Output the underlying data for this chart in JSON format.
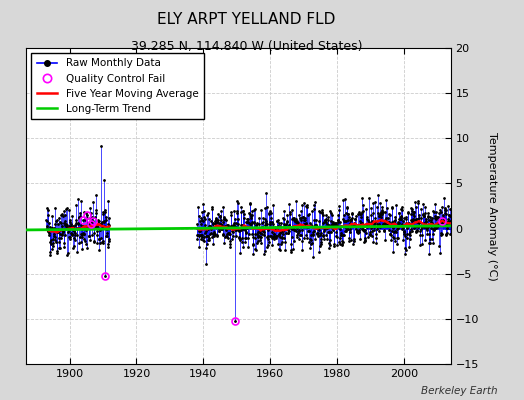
{
  "title": "ELY ARPT YELLAND FLD",
  "subtitle": "39.285 N, 114.840 W (United States)",
  "ylabel": "Temperature Anomaly (°C)",
  "watermark": "Berkeley Earth",
  "xlim": [
    1887,
    2014
  ],
  "ylim": [
    -15,
    20
  ],
  "yticks": [
    -15,
    -10,
    -5,
    0,
    5,
    10,
    15,
    20
  ],
  "xticks": [
    1900,
    1920,
    1940,
    1960,
    1980,
    2000
  ],
  "fig_bg_color": "#d8d8d8",
  "plot_bg_color": "#ffffff",
  "seg1_start": 1893,
  "seg1_end": 1912,
  "seg2_start": 1938,
  "seg2_end": 2014,
  "raw_color": "#0000ff",
  "dot_color": "#000000",
  "ma_color": "#ff0000",
  "trend_color": "#00cc00",
  "qc_color": "#ff00ff",
  "seed": 42,
  "spike1_year": 1909.5,
  "spike1_val": 9.2,
  "spike2_year": 1949.5,
  "spike2_val": -10.2,
  "qc_fail_years_seg1": [
    1904.0,
    1905.2,
    1906.3,
    1907.1,
    1910.5
  ],
  "qc_fail_vals_seg1": [
    1.0,
    1.5,
    0.5,
    0.8,
    -5.2
  ],
  "qc_fail_years_seg2": [
    1949.5,
    2011.5
  ],
  "qc_fail_vals_seg2": [
    -10.2,
    0.8
  ]
}
